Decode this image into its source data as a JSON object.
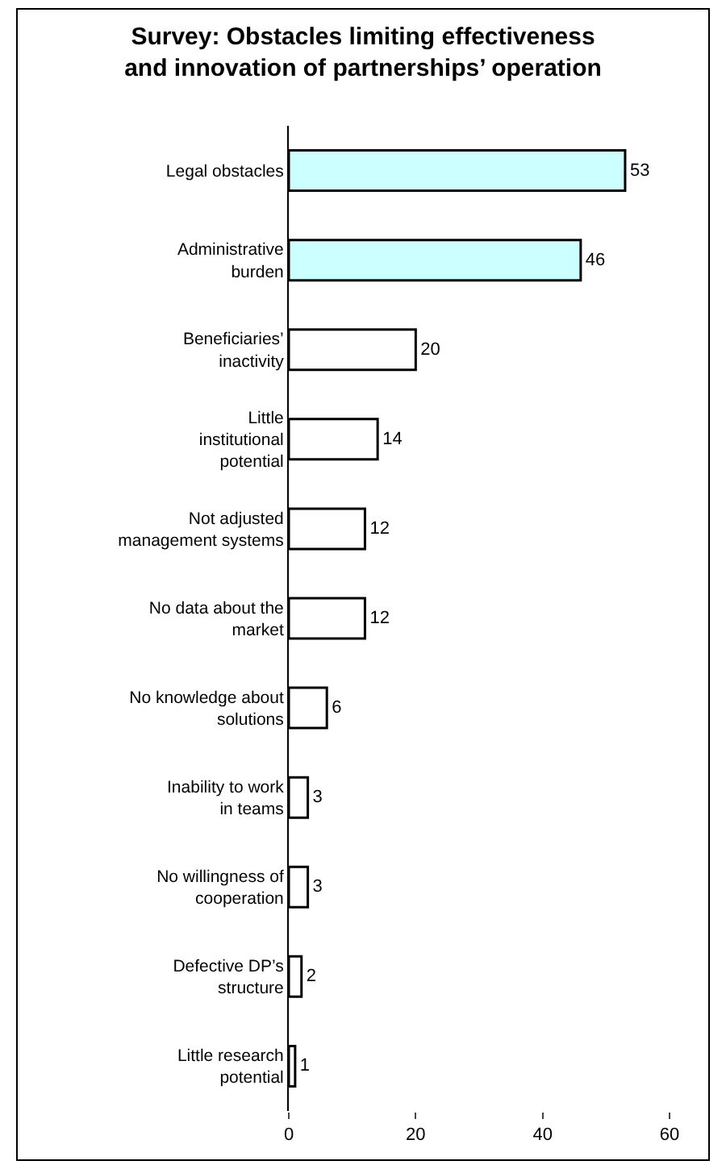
{
  "chart_data": {
    "type": "bar",
    "orientation": "horizontal",
    "title": "Survey: Obstacles limiting effectiveness and innovation of partnerships’ operation",
    "categories": [
      "Legal obstacles",
      "Administrative burden",
      "Beneficiaries’ inactivity",
      "Little institutional potential",
      "Not adjusted management systems",
      "No data about the market",
      "No knowledge about solutions",
      "Inability to work in teams",
      "No willingness of cooperation",
      "Defective DP’s structure",
      "Little research potential"
    ],
    "values": [
      53,
      46,
      20,
      14,
      12,
      12,
      6,
      3,
      3,
      2,
      1
    ],
    "colors": [
      "#ccffff",
      "#ccffff",
      "#ffffff",
      "#ffffff",
      "#ffffff",
      "#ffffff",
      "#ffffff",
      "#ffffff",
      "#ffffff",
      "#ffffff",
      "#ffffff"
    ],
    "xlim": [
      0,
      60
    ],
    "xticks": [
      0,
      20,
      40,
      60
    ],
    "grid": false,
    "data_labels": true
  }
}
